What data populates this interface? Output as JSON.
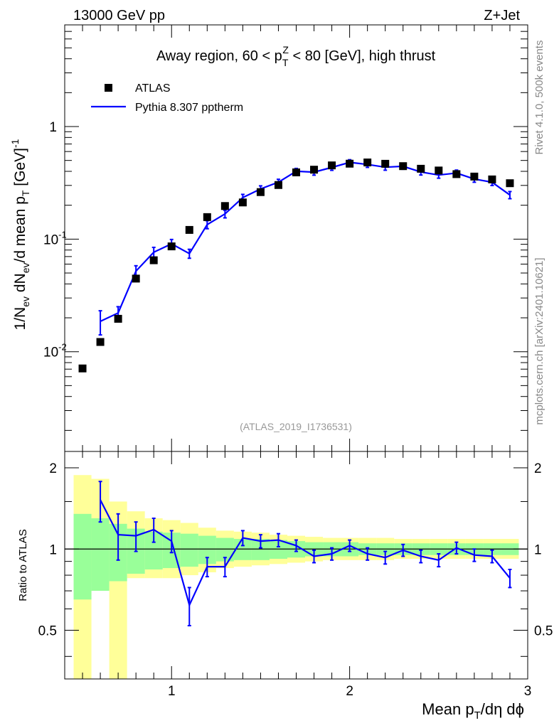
{
  "header": {
    "energy": "13000 GeV pp",
    "process": "Z+Jet"
  },
  "side_labels": {
    "rivet": "Rivet 4.1.0,  500k events",
    "mcplots": "mcplots.cern.ch [arXiv:2401.10621]"
  },
  "colors": {
    "data": "#000000",
    "mc": "#0000ff",
    "band_inner": "#99ff99",
    "band_outer": "#ffff99"
  },
  "chart_data": {
    "type": "scatter",
    "title": "Away region, 60 < p_T^Z < 80 [GeV], high thrust",
    "title_parts": {
      "pre": "Away region, 60 < p",
      "sub": "T",
      "sup": "Z",
      "post": " < 80 [GeV], high thrust"
    },
    "analysis_id": "(ATLAS_2019_I1736531)",
    "xlabel": "Mean p_T/dη dϕ",
    "xlabel_parts": {
      "pre": "Mean p",
      "sub": "T",
      "post": "/dη dϕ"
    },
    "ylabel": "1/N_ev dN_ev/d mean p_T [GeV]^-1",
    "ylabel_parts": {
      "a": "1/N",
      "a_sub": "ev",
      "b": " dN",
      "b_sub": "ev",
      "c": "/d mean p",
      "c_sub": "T",
      "d": " [GeV]",
      "d_sup": "-1"
    },
    "ratio_ylabel": "Ratio to ATLAS",
    "xlim": [
      0.4,
      3.0
    ],
    "ylim": [
      0.0013,
      8.0
    ],
    "yscale": "log",
    "ratio_ylim": [
      0.33,
      2.3
    ],
    "x_ticks": [
      "1",
      "2",
      "3"
    ],
    "y_ticks": [
      {
        "mant": "10",
        "exp": "-2"
      },
      {
        "mant": "10",
        "exp": "-1"
      },
      {
        "mant": "1",
        "exp": ""
      }
    ],
    "ratio_ticks": [
      "0.5",
      "1",
      "2"
    ],
    "legend_position": "top-left",
    "series": [
      {
        "name": "ATLAS",
        "kind": "data-points",
        "x": [
          0.5,
          0.6,
          0.7,
          0.8,
          0.9,
          1.0,
          1.1,
          1.2,
          1.3,
          1.4,
          1.5,
          1.6,
          1.7,
          1.8,
          1.9,
          2.0,
          2.1,
          2.2,
          2.3,
          2.4,
          2.5,
          2.6,
          2.7,
          2.8,
          2.9
        ],
        "y": [
          0.0071,
          0.0122,
          0.0196,
          0.0446,
          0.0649,
          0.0862,
          0.1207,
          0.1569,
          0.1968,
          0.2117,
          0.2616,
          0.3024,
          0.3917,
          0.4138,
          0.4518,
          0.4679,
          0.4798,
          0.4669,
          0.4449,
          0.4217,
          0.4069,
          0.3778,
          0.3594,
          0.3391,
          0.3138
        ]
      },
      {
        "name": "Pythia 8.307 pptherm",
        "kind": "line",
        "x": [
          0.6,
          0.7,
          0.8,
          0.9,
          1.0,
          1.1,
          1.2,
          1.3,
          1.4,
          1.5,
          1.6,
          1.7,
          1.8,
          1.9,
          2.0,
          2.1,
          2.2,
          2.3,
          2.4,
          2.5,
          2.6,
          2.7,
          2.8,
          2.9
        ],
        "y": [
          0.0186,
          0.0221,
          0.052,
          0.0765,
          0.0908,
          0.0744,
          0.1347,
          0.1674,
          0.2338,
          0.2793,
          0.3201,
          0.4007,
          0.3939,
          0.4334,
          0.4804,
          0.4606,
          0.4354,
          0.4434,
          0.395,
          0.3707,
          0.3866,
          0.3421,
          0.3205,
          0.2466
        ],
        "y_err": [
          0.0045,
          0.003,
          0.006,
          0.008,
          0.0085,
          0.0068,
          0.011,
          0.013,
          0.016,
          0.018,
          0.02,
          0.024,
          0.024,
          0.025,
          0.027,
          0.027,
          0.026,
          0.026,
          0.024,
          0.023,
          0.024,
          0.022,
          0.021,
          0.018
        ]
      }
    ],
    "ratio": {
      "reference": 1.0,
      "mc_values": [
        1.52,
        1.13,
        1.12,
        1.18,
        1.07,
        0.62,
        0.86,
        0.86,
        1.1,
        1.07,
        1.08,
        1.03,
        0.94,
        0.96,
        1.03,
        0.96,
        0.93,
        0.99,
        0.94,
        0.91,
        1.01,
        0.95,
        0.94,
        0.78
      ],
      "mc_errors": [
        0.26,
        0.22,
        0.14,
        0.12,
        0.1,
        0.1,
        0.07,
        0.07,
        0.07,
        0.06,
        0.06,
        0.05,
        0.05,
        0.05,
        0.05,
        0.05,
        0.05,
        0.05,
        0.05,
        0.05,
        0.05,
        0.05,
        0.05,
        0.06
      ],
      "bin_edges": [
        0.45,
        0.55,
        0.65,
        0.75,
        0.85,
        0.95,
        1.05,
        1.15,
        1.25,
        1.35,
        1.45,
        1.55,
        1.65,
        1.75,
        1.85,
        1.95,
        2.05,
        2.15,
        2.25,
        2.35,
        2.45,
        2.55,
        2.65,
        2.75,
        2.85,
        2.95
      ],
      "band_inner_hi": [
        1.35,
        1.3,
        1.24,
        1.19,
        1.16,
        1.15,
        1.14,
        1.12,
        1.1,
        1.09,
        1.09,
        1.08,
        1.07,
        1.06,
        1.06,
        1.06,
        1.05,
        1.05,
        1.05,
        1.05,
        1.05,
        1.05,
        1.05,
        1.05,
        1.05
      ],
      "band_inner_lo": [
        0.65,
        0.7,
        0.76,
        0.81,
        0.84,
        0.85,
        0.86,
        0.88,
        0.9,
        0.91,
        0.91,
        0.92,
        0.93,
        0.94,
        0.94,
        0.94,
        0.95,
        0.95,
        0.95,
        0.95,
        0.95,
        0.95,
        0.95,
        0.95,
        0.95
      ],
      "band_outer_hi": [
        1.88,
        1.82,
        1.5,
        1.38,
        1.3,
        1.28,
        1.25,
        1.2,
        1.17,
        1.16,
        1.15,
        1.13,
        1.12,
        1.11,
        1.1,
        1.1,
        1.1,
        1.1,
        1.09,
        1.09,
        1.09,
        1.09,
        1.09,
        1.09,
        1.09
      ],
      "band_outer_lo": [
        0.33,
        0.75,
        0.33,
        0.78,
        0.78,
        0.78,
        0.8,
        0.82,
        0.85,
        0.86,
        0.87,
        0.88,
        0.89,
        0.9,
        0.91,
        0.91,
        0.91,
        0.91,
        0.92,
        0.92,
        0.92,
        0.92,
        0.92,
        0.92,
        0.92
      ]
    }
  }
}
